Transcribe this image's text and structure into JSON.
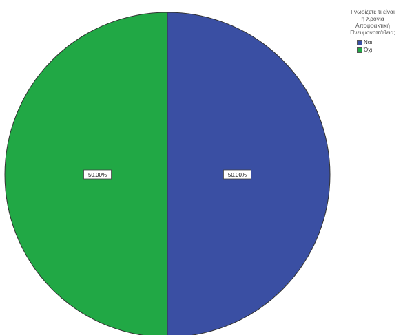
{
  "chart_data": {
    "type": "pie",
    "legend_title_lines": [
      "Γνωρίζετε τι είναι",
      "η Χρόνια",
      "Αποφρακτική",
      "Πνευμονοπάθεια;"
    ],
    "legend_placement": "top-right",
    "slices": [
      {
        "label": "Ναι",
        "value": 50.0,
        "data_label": "50.00%",
        "color": "#3a4fa3"
      },
      {
        "label": "Όχι",
        "value": 50.0,
        "data_label": "50.00%",
        "color": "#21a845"
      }
    ]
  }
}
